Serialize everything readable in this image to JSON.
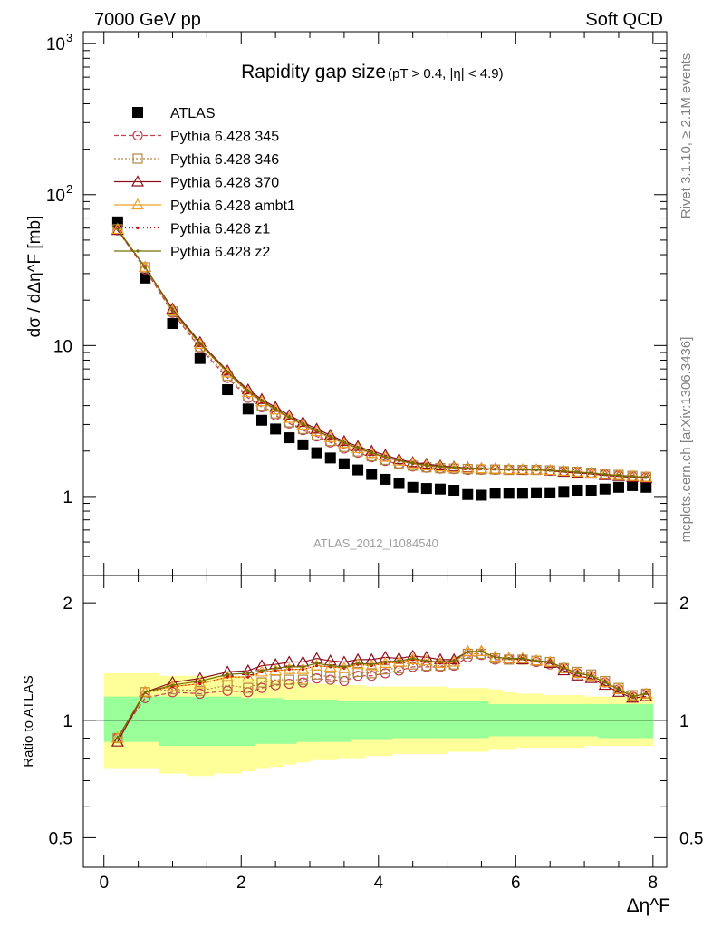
{
  "header": {
    "left": "7000 GeV pp",
    "right": "Soft QCD"
  },
  "side": {
    "rivet": "Rivet 3.1.10, ≥ 2.1M events",
    "mcplots": "mcplots.cern.ch [arXiv:1306.3436]"
  },
  "watermark": "ATLAS_2012_I1084540",
  "chart_data": [
    {
      "type": "scatter",
      "title_main": "Rapidity gap size",
      "title_sub": "(pT > 0.4, |η| < 4.9)",
      "ylabel": "dσ / dΔη^F [mb]",
      "xlabel": "Δη^F",
      "yscale": "log",
      "xlim": [
        -0.3,
        8.2
      ],
      "ylim": [
        0.3,
        1200
      ],
      "ytick_labels": [
        "1",
        "10",
        "10^2",
        "10^3"
      ],
      "xtick_labels": [
        "0",
        "2",
        "4",
        "6",
        "8"
      ],
      "x": [
        0.2,
        0.6,
        1.0,
        1.4,
        1.8,
        2.1,
        2.3,
        2.5,
        2.7,
        2.9,
        3.1,
        3.3,
        3.5,
        3.7,
        3.9,
        4.1,
        4.3,
        4.5,
        4.7,
        4.9,
        5.1,
        5.3,
        5.5,
        5.7,
        5.9,
        6.1,
        6.3,
        6.5,
        6.7,
        6.9,
        7.1,
        7.3,
        7.5,
        7.7,
        7.9
      ],
      "series": [
        {
          "name": "ATLAS",
          "color": "#000000",
          "marker": "square",
          "values": [
            66,
            28,
            14,
            8.2,
            5.1,
            3.8,
            3.2,
            2.8,
            2.45,
            2.2,
            1.95,
            1.8,
            1.65,
            1.5,
            1.4,
            1.3,
            1.22,
            1.15,
            1.13,
            1.12,
            1.1,
            1.03,
            1.02,
            1.05,
            1.05,
            1.05,
            1.06,
            1.06,
            1.08,
            1.1,
            1.1,
            1.12,
            1.15,
            1.18,
            1.15
          ]
        },
        {
          "name": "Pythia 6.428 345",
          "color": "#c04050",
          "marker": "circle",
          "dash": "5,3",
          "values": [
            58,
            32,
            16.5,
            9.6,
            6.1,
            4.5,
            3.9,
            3.45,
            3.05,
            2.75,
            2.5,
            2.28,
            2.08,
            1.95,
            1.82,
            1.72,
            1.64,
            1.58,
            1.55,
            1.53,
            1.52,
            1.5,
            1.5,
            1.5,
            1.5,
            1.5,
            1.5,
            1.48,
            1.47,
            1.45,
            1.43,
            1.4,
            1.38,
            1.36,
            1.34
          ]
        },
        {
          "name": "Pythia 6.428 346",
          "color": "#b08840",
          "marker": "square-open",
          "dash": "2,2",
          "values": [
            59,
            33,
            16.8,
            9.8,
            6.3,
            4.6,
            4.0,
            3.55,
            3.1,
            2.8,
            2.55,
            2.33,
            2.13,
            1.99,
            1.85,
            1.75,
            1.66,
            1.6,
            1.56,
            1.54,
            1.53,
            1.52,
            1.51,
            1.51,
            1.5,
            1.5,
            1.5,
            1.49,
            1.47,
            1.46,
            1.44,
            1.41,
            1.39,
            1.37,
            1.35
          ]
        },
        {
          "name": "Pythia 6.428 370",
          "color": "#8b1020",
          "marker": "triangle-open",
          "dash": "",
          "values": [
            58,
            33,
            17.5,
            10.5,
            6.8,
            5.1,
            4.4,
            3.9,
            3.45,
            3.1,
            2.8,
            2.55,
            2.32,
            2.15,
            2.0,
            1.88,
            1.76,
            1.68,
            1.64,
            1.6,
            1.57,
            1.55,
            1.53,
            1.52,
            1.51,
            1.5,
            1.5,
            1.48,
            1.45,
            1.43,
            1.41,
            1.38,
            1.36,
            1.34,
            1.32
          ]
        },
        {
          "name": "Pythia 6.428 ambt1",
          "color": "#f0a020",
          "marker": "triangle-open",
          "dash": "",
          "values": [
            59,
            33,
            17,
            10.2,
            6.6,
            4.9,
            4.25,
            3.75,
            3.3,
            2.98,
            2.7,
            2.46,
            2.25,
            2.08,
            1.93,
            1.82,
            1.72,
            1.65,
            1.6,
            1.57,
            1.55,
            1.54,
            1.53,
            1.52,
            1.51,
            1.51,
            1.5,
            1.49,
            1.47,
            1.45,
            1.43,
            1.4,
            1.38,
            1.36,
            1.34
          ]
        },
        {
          "name": "Pythia 6.428 z1",
          "color": "#c01010",
          "marker": "dot",
          "dash": "1,3",
          "values": [
            59,
            33,
            17,
            10.2,
            6.6,
            4.9,
            4.25,
            3.75,
            3.3,
            2.98,
            2.7,
            2.46,
            2.25,
            2.08,
            1.93,
            1.82,
            1.72,
            1.65,
            1.6,
            1.57,
            1.55,
            1.54,
            1.53,
            1.52,
            1.51,
            1.51,
            1.5,
            1.49,
            1.47,
            1.45,
            1.43,
            1.4,
            1.38,
            1.36,
            1.34
          ]
        },
        {
          "name": "Pythia 6.428 z2",
          "color": "#707000",
          "marker": "dot",
          "dash": "",
          "values": [
            59,
            33,
            17.2,
            10.3,
            6.7,
            5.0,
            4.3,
            3.8,
            3.35,
            3.02,
            2.73,
            2.49,
            2.27,
            2.1,
            1.95,
            1.83,
            1.73,
            1.66,
            1.61,
            1.58,
            1.56,
            1.54,
            1.53,
            1.52,
            1.51,
            1.51,
            1.5,
            1.49,
            1.47,
            1.45,
            1.43,
            1.4,
            1.38,
            1.36,
            1.34
          ]
        }
      ]
    },
    {
      "type": "line",
      "ylabel": "Ratio to ATLAS",
      "yscale": "log",
      "ylim": [
        0.42,
        2.35
      ],
      "ytick_labels": [
        "0.5",
        "1",
        "2"
      ],
      "x": [
        0.2,
        0.6,
        1.0,
        1.4,
        1.8,
        2.1,
        2.3,
        2.5,
        2.7,
        2.9,
        3.1,
        3.3,
        3.5,
        3.7,
        3.9,
        4.1,
        4.3,
        4.5,
        4.7,
        4.9,
        5.1,
        5.3,
        5.5,
        5.7,
        5.9,
        6.1,
        6.3,
        6.5,
        6.7,
        6.9,
        7.1,
        7.3,
        7.5,
        7.7,
        7.9
      ],
      "band_edges": [
        0.0,
        0.4,
        0.8,
        1.2,
        1.6,
        2.0,
        2.2,
        2.4,
        2.6,
        2.8,
        3.0,
        3.2,
        3.4,
        3.6,
        3.8,
        4.0,
        4.2,
        4.4,
        4.6,
        4.8,
        5.0,
        5.2,
        5.4,
        5.6,
        5.8,
        6.0,
        6.2,
        6.4,
        6.6,
        6.8,
        7.0,
        7.2,
        7.4,
        7.6,
        7.8,
        8.0
      ],
      "stat_band": {
        "color": "#99ff99",
        "upper": [
          1.15,
          1.15,
          1.15,
          1.15,
          1.15,
          1.14,
          1.14,
          1.14,
          1.13,
          1.13,
          1.13,
          1.13,
          1.12,
          1.12,
          1.12,
          1.12,
          1.12,
          1.12,
          1.12,
          1.12,
          1.12,
          1.12,
          1.12,
          1.1,
          1.1,
          1.1,
          1.1,
          1.1,
          1.1,
          1.1,
          1.1,
          1.1,
          1.1,
          1.1,
          1.1
        ],
        "lower": [
          0.88,
          0.88,
          0.86,
          0.86,
          0.86,
          0.86,
          0.87,
          0.87,
          0.87,
          0.88,
          0.88,
          0.88,
          0.88,
          0.89,
          0.89,
          0.89,
          0.9,
          0.9,
          0.9,
          0.9,
          0.9,
          0.9,
          0.9,
          0.91,
          0.91,
          0.91,
          0.91,
          0.91,
          0.91,
          0.91,
          0.91,
          0.9,
          0.9,
          0.9,
          0.9
        ]
      },
      "syst_band": {
        "color": "#ffff99",
        "upper": [
          1.32,
          1.32,
          1.3,
          1.3,
          1.3,
          1.28,
          1.28,
          1.27,
          1.26,
          1.25,
          1.24,
          1.24,
          1.23,
          1.23,
          1.22,
          1.22,
          1.22,
          1.22,
          1.22,
          1.22,
          1.21,
          1.21,
          1.21,
          1.2,
          1.18,
          1.17,
          1.17,
          1.16,
          1.16,
          1.16,
          1.15,
          1.15,
          1.15,
          1.15,
          1.15
        ],
        "lower": [
          0.75,
          0.75,
          0.73,
          0.72,
          0.73,
          0.74,
          0.75,
          0.76,
          0.77,
          0.78,
          0.79,
          0.79,
          0.8,
          0.8,
          0.81,
          0.81,
          0.82,
          0.82,
          0.82,
          0.82,
          0.83,
          0.83,
          0.83,
          0.84,
          0.84,
          0.85,
          0.85,
          0.85,
          0.85,
          0.85,
          0.86,
          0.86,
          0.86,
          0.86,
          0.86
        ]
      },
      "series": [
        {
          "name": "Pythia 6.428 345",
          "color": "#c04050",
          "marker": "circle",
          "dash": "5,3",
          "values": [
            0.9,
            1.14,
            1.18,
            1.17,
            1.19,
            1.18,
            1.21,
            1.23,
            1.24,
            1.25,
            1.28,
            1.27,
            1.26,
            1.3,
            1.3,
            1.32,
            1.34,
            1.37,
            1.37,
            1.37,
            1.38,
            1.45,
            1.47,
            1.43,
            1.43,
            1.43,
            1.41,
            1.39,
            1.36,
            1.32,
            1.3,
            1.25,
            1.2,
            1.15,
            1.17
          ]
        },
        {
          "name": "Pythia 6.428 346",
          "color": "#b08840",
          "marker": "square-open",
          "dash": "2,2",
          "values": [
            0.9,
            1.18,
            1.2,
            1.19,
            1.23,
            1.21,
            1.25,
            1.27,
            1.27,
            1.27,
            1.31,
            1.29,
            1.29,
            1.33,
            1.32,
            1.35,
            1.36,
            1.39,
            1.38,
            1.38,
            1.39,
            1.48,
            1.48,
            1.44,
            1.43,
            1.43,
            1.42,
            1.41,
            1.36,
            1.33,
            1.31,
            1.26,
            1.21,
            1.16,
            1.17
          ]
        },
        {
          "name": "Pythia 6.428 370",
          "color": "#8b1020",
          "marker": "triangle-open",
          "dash": "",
          "values": [
            0.88,
            1.18,
            1.25,
            1.28,
            1.33,
            1.34,
            1.38,
            1.39,
            1.41,
            1.41,
            1.44,
            1.42,
            1.41,
            1.43,
            1.43,
            1.45,
            1.44,
            1.46,
            1.45,
            1.43,
            1.43,
            1.5,
            1.5,
            1.45,
            1.44,
            1.43,
            1.42,
            1.4,
            1.34,
            1.3,
            1.28,
            1.23,
            1.18,
            1.14,
            1.15
          ]
        },
        {
          "name": "Pythia 6.428 ambt1",
          "color": "#f0a020",
          "marker": "triangle-open",
          "dash": "",
          "values": [
            0.9,
            1.18,
            1.22,
            1.24,
            1.29,
            1.29,
            1.33,
            1.34,
            1.35,
            1.35,
            1.38,
            1.37,
            1.36,
            1.39,
            1.38,
            1.4,
            1.41,
            1.43,
            1.42,
            1.4,
            1.41,
            1.5,
            1.5,
            1.45,
            1.44,
            1.44,
            1.42,
            1.41,
            1.36,
            1.32,
            1.3,
            1.25,
            1.2,
            1.15,
            1.17
          ]
        },
        {
          "name": "Pythia 6.428 z1",
          "color": "#c01010",
          "marker": "dot",
          "dash": "1,3",
          "values": [
            0.9,
            1.18,
            1.22,
            1.24,
            1.29,
            1.29,
            1.33,
            1.34,
            1.35,
            1.35,
            1.38,
            1.37,
            1.36,
            1.39,
            1.38,
            1.4,
            1.41,
            1.43,
            1.42,
            1.4,
            1.41,
            1.5,
            1.5,
            1.45,
            1.44,
            1.44,
            1.42,
            1.41,
            1.36,
            1.32,
            1.3,
            1.25,
            1.2,
            1.15,
            1.17
          ]
        },
        {
          "name": "Pythia 6.428 z2",
          "color": "#707000",
          "marker": "dot",
          "dash": "",
          "values": [
            0.9,
            1.18,
            1.23,
            1.26,
            1.31,
            1.32,
            1.34,
            1.36,
            1.37,
            1.37,
            1.4,
            1.38,
            1.37,
            1.4,
            1.39,
            1.41,
            1.42,
            1.44,
            1.42,
            1.41,
            1.42,
            1.5,
            1.5,
            1.45,
            1.44,
            1.44,
            1.42,
            1.41,
            1.36,
            1.32,
            1.3,
            1.25,
            1.2,
            1.15,
            1.17
          ]
        }
      ]
    }
  ]
}
